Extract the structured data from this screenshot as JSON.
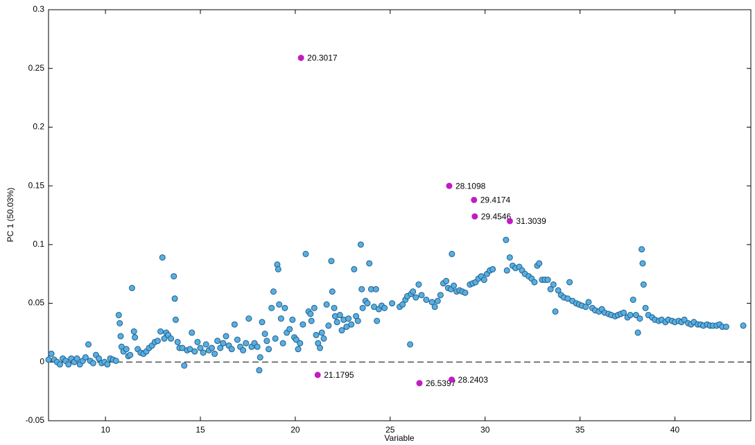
{
  "chart_data": {
    "type": "scatter",
    "x_label": "Variable",
    "y_label": "PC 1 (50.03%)",
    "xlim": [
      7,
      44
    ],
    "ylim": [
      -0.05,
      0.3
    ],
    "xticks": [
      10,
      15,
      20,
      25,
      30,
      35,
      40
    ],
    "yticks": [
      -0.05,
      0,
      0.05,
      0.1,
      0.15,
      0.2,
      0.25,
      0.3
    ],
    "reference_line": 0,
    "series": [
      {
        "color": "#5aaee0",
        "edge_color": "#1d5f8c",
        "x": [
          7.0,
          7.15,
          7.3,
          7.45,
          7.6,
          7.75,
          7.9,
          8.05,
          8.2,
          8.35,
          8.5,
          8.65,
          8.8,
          8.95,
          9.1,
          9.2,
          9.35,
          9.5,
          9.65,
          9.8,
          9.95,
          10.1,
          10.25,
          10.4,
          10.55,
          10.7,
          10.75,
          10.8,
          10.85,
          10.95,
          11.1,
          11.2,
          11.3,
          11.4,
          11.5,
          11.55,
          11.7,
          11.85,
          12.0,
          12.15,
          12.3,
          12.45,
          12.6,
          12.75,
          12.9,
          13.0,
          13.1,
          13.2,
          13.3,
          13.45,
          13.6,
          13.65,
          13.7,
          13.8,
          13.9,
          14.05,
          14.15,
          14.3,
          14.45,
          14.55,
          14.7,
          14.85,
          15.0,
          15.15,
          15.3,
          15.45,
          15.6,
          15.75,
          15.9,
          16.05,
          16.2,
          16.35,
          16.5,
          16.65,
          16.8,
          16.95,
          17.1,
          17.25,
          17.4,
          17.55,
          17.7,
          17.85,
          18.0,
          18.1,
          18.15,
          18.25,
          18.4,
          18.5,
          18.6,
          18.75,
          18.85,
          18.95,
          19.05,
          19.1,
          19.15,
          19.25,
          19.35,
          19.45,
          19.55,
          19.7,
          19.85,
          19.95,
          20.05,
          20.15,
          20.25,
          20.4,
          20.55,
          20.7,
          20.8,
          20.85,
          21.0,
          21.1,
          21.2,
          21.3,
          21.4,
          21.5,
          21.65,
          21.75,
          21.9,
          21.95,
          22.05,
          22.1,
          22.2,
          22.35,
          22.45,
          22.55,
          22.7,
          22.8,
          22.95,
          23.1,
          23.2,
          23.3,
          23.45,
          23.5,
          23.55,
          23.7,
          23.8,
          23.9,
          24.0,
          24.15,
          24.25,
          24.3,
          24.4,
          24.55,
          24.7,
          25.1,
          25.5,
          25.65,
          25.8,
          25.9,
          26.05,
          26.1,
          26.2,
          26.35,
          26.5,
          26.65,
          26.9,
          27.2,
          27.35,
          27.5,
          27.65,
          27.8,
          27.95,
          28.05,
          28.2,
          28.35,
          28.5,
          28.65,
          28.8,
          28.95,
          28.25,
          29.2,
          29.35,
          29.5,
          29.65,
          29.8,
          29.95,
          30.1,
          30.25,
          30.4,
          31.1,
          31.15,
          31.3,
          31.45,
          31.6,
          31.8,
          31.95,
          32.1,
          32.3,
          32.45,
          32.6,
          32.75,
          32.85,
          33.0,
          33.15,
          33.3,
          33.45,
          33.6,
          33.7,
          33.85,
          34.0,
          34.15,
          34.35,
          34.45,
          34.6,
          34.8,
          34.95,
          35.1,
          35.3,
          35.45,
          35.65,
          35.8,
          36.0,
          36.15,
          36.3,
          36.5,
          36.65,
          36.85,
          37.0,
          37.15,
          37.3,
          37.5,
          37.65,
          37.8,
          37.95,
          38.05,
          38.15,
          38.25,
          38.3,
          38.35,
          38.45,
          38.6,
          38.8,
          38.95,
          39.15,
          39.3,
          39.5,
          39.65,
          39.85,
          40.0,
          40.2,
          40.35,
          40.5,
          40.7,
          40.85,
          41.0,
          41.2,
          41.35,
          41.5,
          41.7,
          41.85,
          42.0,
          42.2,
          42.35,
          42.5,
          42.7,
          43.6
        ],
        "values": [
          0.002,
          0.007,
          0.002,
          0.0,
          -0.002,
          0.003,
          0.001,
          -0.002,
          0.003,
          0.0,
          0.003,
          -0.002,
          0.001,
          0.004,
          0.015,
          0.001,
          -0.001,
          0.006,
          0.003,
          -0.001,
          0.0,
          -0.002,
          0.003,
          0.002,
          0.001,
          0.04,
          0.033,
          0.022,
          0.013,
          0.009,
          0.011,
          0.005,
          0.006,
          0.063,
          0.026,
          0.021,
          0.011,
          0.008,
          0.007,
          0.009,
          0.012,
          0.014,
          0.017,
          0.018,
          0.026,
          0.089,
          0.02,
          0.025,
          0.023,
          0.02,
          0.073,
          0.054,
          0.036,
          0.017,
          0.012,
          0.012,
          -0.003,
          0.01,
          0.011,
          0.025,
          0.009,
          0.017,
          0.012,
          0.008,
          0.015,
          0.01,
          0.012,
          0.007,
          0.018,
          0.012,
          0.016,
          0.022,
          0.014,
          0.011,
          0.032,
          0.019,
          0.013,
          0.01,
          0.016,
          0.037,
          0.013,
          0.016,
          0.013,
          -0.007,
          0.004,
          0.034,
          0.024,
          0.018,
          0.011,
          0.046,
          0.06,
          0.02,
          0.083,
          0.079,
          0.049,
          0.037,
          0.016,
          0.046,
          0.025,
          0.028,
          0.036,
          0.021,
          0.019,
          0.011,
          0.016,
          0.032,
          0.092,
          0.043,
          0.041,
          0.035,
          0.046,
          0.023,
          0.016,
          0.012,
          0.025,
          0.02,
          0.049,
          0.031,
          0.086,
          0.06,
          0.046,
          0.039,
          0.034,
          0.04,
          0.027,
          0.036,
          0.03,
          0.037,
          0.032,
          0.079,
          0.039,
          0.035,
          0.1,
          0.062,
          0.046,
          0.052,
          0.05,
          0.084,
          0.062,
          0.047,
          0.062,
          0.035,
          0.045,
          0.048,
          0.046,
          0.05,
          0.047,
          0.049,
          0.053,
          0.056,
          0.015,
          0.058,
          0.06,
          0.055,
          0.066,
          0.057,
          0.053,
          0.051,
          0.047,
          0.052,
          0.057,
          0.067,
          0.069,
          0.063,
          0.062,
          0.065,
          0.06,
          0.061,
          0.06,
          0.059,
          0.092,
          0.066,
          0.067,
          0.068,
          0.071,
          0.073,
          0.07,
          0.075,
          0.078,
          0.079,
          0.104,
          0.078,
          0.089,
          0.082,
          0.08,
          0.081,
          0.078,
          0.075,
          0.073,
          0.071,
          0.068,
          0.082,
          0.084,
          0.07,
          0.07,
          0.07,
          0.062,
          0.066,
          0.043,
          0.061,
          0.057,
          0.055,
          0.054,
          0.068,
          0.052,
          0.05,
          0.049,
          0.048,
          0.047,
          0.051,
          0.046,
          0.044,
          0.043,
          0.045,
          0.042,
          0.041,
          0.04,
          0.039,
          0.04,
          0.041,
          0.042,
          0.038,
          0.04,
          0.053,
          0.04,
          0.025,
          0.037,
          0.096,
          0.084,
          0.066,
          0.046,
          0.04,
          0.038,
          0.036,
          0.035,
          0.036,
          0.034,
          0.036,
          0.035,
          0.034,
          0.035,
          0.034,
          0.036,
          0.033,
          0.032,
          0.034,
          0.032,
          0.032,
          0.031,
          0.032,
          0.031,
          0.031,
          0.031,
          0.032,
          0.03,
          0.03,
          0.031
        ]
      },
      {
        "color": "#c21bc2",
        "edge_color": "#c21bc2",
        "point_labels": true,
        "x": [
          20.3017,
          28.1098,
          29.4174,
          29.4546,
          31.3039,
          21.1795,
          26.5397,
          28.2403
        ],
        "values": [
          0.259,
          0.15,
          0.138,
          0.124,
          0.12,
          -0.011,
          -0.018,
          -0.015
        ]
      }
    ]
  }
}
